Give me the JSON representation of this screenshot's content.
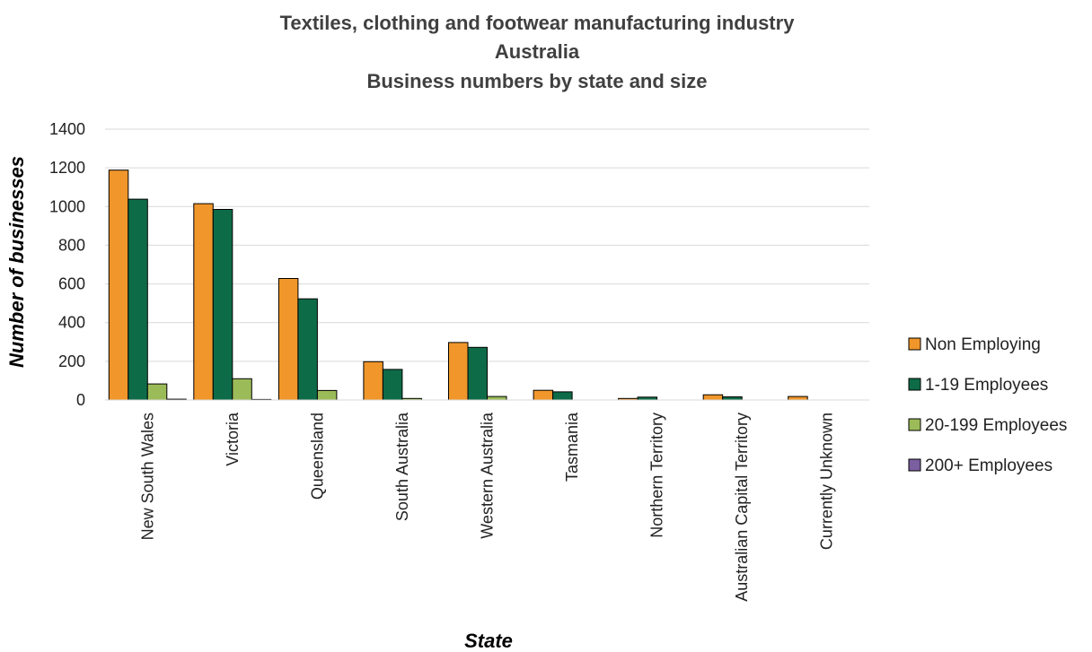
{
  "chart_data": {
    "type": "bar",
    "title_lines": [
      "Textiles, clothing and footwear manufacturing industry",
      "Australia",
      "Business numbers by state and size"
    ],
    "xlabel": "State",
    "ylabel": "Number of businesses",
    "ylim": [
      0,
      1400
    ],
    "yticks": [
      0,
      200,
      400,
      600,
      800,
      1000,
      1200,
      1400
    ],
    "grid": true,
    "legend_position": "right",
    "categories": [
      "New South Wales",
      "Victoria",
      "Queensland",
      "South Australia",
      "Western Australia",
      "Tasmania",
      "Northern Territory",
      "Australian Capital Territory",
      "Currently Unknown"
    ],
    "series": [
      {
        "name": "Non Employing",
        "color": "#F0962A",
        "values": [
          1188,
          1015,
          628,
          198,
          297,
          50,
          8,
          27,
          18
        ]
      },
      {
        "name": "1-19 Employees",
        "color": "#0E6B48",
        "values": [
          1038,
          985,
          523,
          158,
          272,
          42,
          15,
          16,
          0
        ]
      },
      {
        "name": "20-199 Employees",
        "color": "#9BBB59",
        "values": [
          83,
          110,
          49,
          8,
          18,
          0,
          0,
          0,
          0
        ]
      },
      {
        "name": "200+ Employees",
        "color": "#7B5FA0",
        "values": [
          4,
          3,
          0,
          0,
          0,
          0,
          0,
          0,
          0
        ]
      }
    ]
  }
}
